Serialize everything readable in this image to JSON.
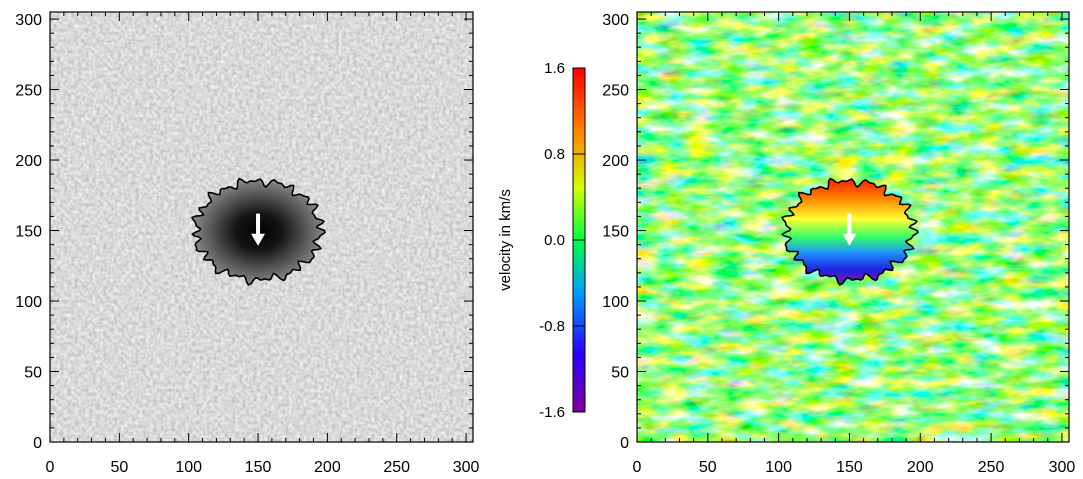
{
  "chart_data": [
    {
      "type": "heatmap",
      "colormap": "grayscale",
      "title": "",
      "xlabel": "",
      "ylabel": "",
      "xlim": [
        0,
        305
      ],
      "ylim": [
        0,
        305
      ],
      "xticks": [
        0,
        50,
        100,
        150,
        200,
        250,
        300
      ],
      "yticks": [
        0,
        50,
        100,
        150,
        200,
        250,
        300
      ],
      "tick_labels_x": [
        "0",
        "50",
        "100",
        "150",
        "200",
        "250",
        "300"
      ],
      "tick_labels_y": [
        "0",
        "50",
        "100",
        "150",
        "200",
        "250",
        "300"
      ],
      "annotations": [
        {
          "kind": "contour",
          "description": "sunspot boundary",
          "center": [
            150,
            150
          ],
          "radius_x": 45,
          "radius_y": 35
        },
        {
          "kind": "arrow",
          "color": "#ffffff",
          "from": [
            150,
            162
          ],
          "to": [
            150,
            142
          ]
        }
      ]
    },
    {
      "type": "heatmap",
      "colormap": "rainbow",
      "title": "",
      "xlabel": "",
      "ylabel": "",
      "xlim": [
        0,
        305
      ],
      "ylim": [
        0,
        305
      ],
      "xticks": [
        0,
        50,
        100,
        150,
        200,
        250,
        300
      ],
      "yticks": [
        0,
        50,
        100,
        150,
        200,
        250,
        300
      ],
      "tick_labels_x": [
        "0",
        "50",
        "100",
        "150",
        "200",
        "250",
        "300"
      ],
      "tick_labels_y": [
        "0",
        "50",
        "100",
        "150",
        "200",
        "250",
        "300"
      ],
      "colorbar": {
        "label": "velocity in km/s",
        "range": [
          -1.6,
          1.6
        ],
        "ticks": [
          -1.6,
          -0.8,
          0.0,
          0.8,
          1.6
        ],
        "tick_labels": [
          "-1.6",
          "-0.8",
          "0.0",
          "0.8",
          "1.6"
        ],
        "colors": [
          "#800080",
          "#0000ff",
          "#00bfff",
          "#00ff00",
          "#ffff00",
          "#ff8000",
          "#ff0000"
        ]
      },
      "annotations": [
        {
          "kind": "contour",
          "description": "sunspot boundary",
          "center": [
            150,
            150
          ],
          "radius_x": 45,
          "radius_y": 35
        },
        {
          "kind": "arrow",
          "color": "#ffffff",
          "from": [
            150,
            162
          ],
          "to": [
            150,
            142
          ]
        }
      ]
    }
  ]
}
